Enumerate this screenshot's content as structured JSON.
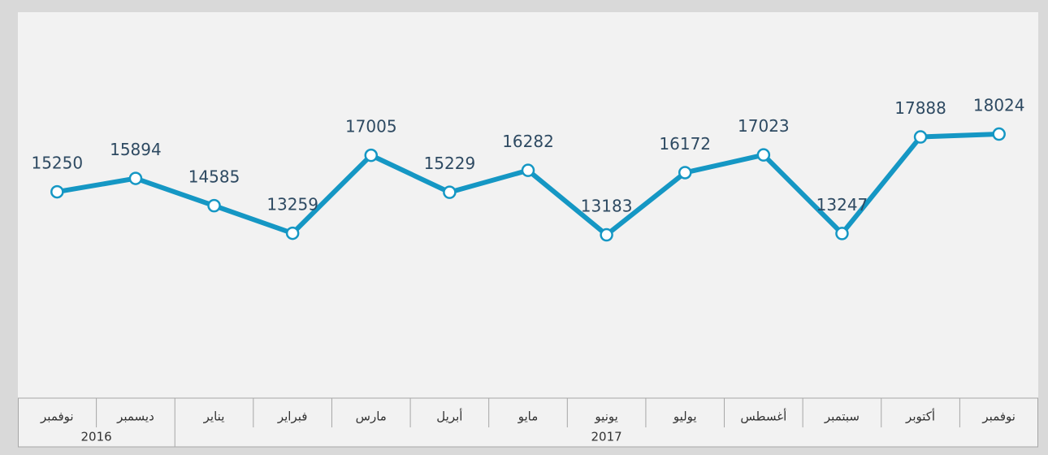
{
  "chart_data": {
    "type": "line",
    "categories": [
      "نوفمبر",
      "ديسمبر",
      "يناير",
      "فبراير",
      "مارس",
      "أبريل",
      "مايو",
      "يونيو",
      "يوليو",
      "أغسطس",
      "سبتمبر",
      "أكتوبر",
      "نوفمبر"
    ],
    "year_labels": [
      "2016",
      null,
      "2017",
      null,
      null,
      null,
      null,
      null,
      null,
      null,
      null,
      null,
      null
    ],
    "values": [
      15250,
      15894,
      14585,
      13259,
      17005,
      15229,
      16282,
      13183,
      16172,
      17023,
      13247,
      17888,
      18024
    ],
    "color": "#1597c4",
    "ylim": [
      5000,
      24000
    ]
  }
}
